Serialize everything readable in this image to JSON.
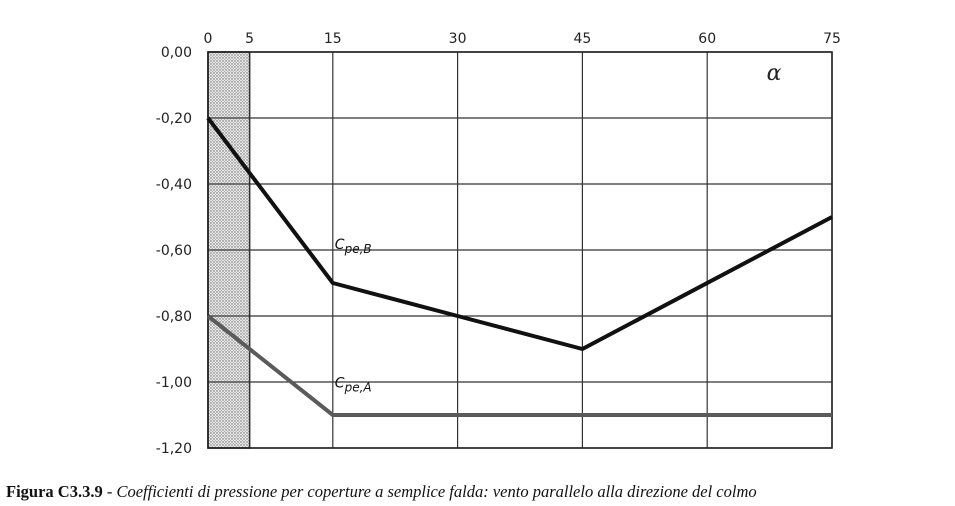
{
  "chart_data": {
    "type": "line",
    "x_axis": {
      "position": "top",
      "ticks": [
        0,
        5,
        15,
        30,
        45,
        60,
        75
      ],
      "xlim": [
        0,
        75
      ],
      "label": "α"
    },
    "y_axis": {
      "ticks": [
        "0,00",
        "-0,20",
        "-0,40",
        "-0,60",
        "-0,80",
        "-1,00",
        "-1,20"
      ],
      "tick_values": [
        0,
        -0.2,
        -0.4,
        -0.6,
        -0.8,
        -1.0,
        -1.2
      ],
      "ylim": [
        -1.2,
        0
      ]
    },
    "grid": true,
    "hatched_band": {
      "x_from": 0,
      "x_to": 5
    },
    "series": [
      {
        "label_main": "C",
        "label_sub": "pe,B",
        "color": "#111111",
        "x": [
          0,
          15,
          30,
          45,
          75
        ],
        "y": [
          -0.2,
          -0.7,
          -0.8,
          -0.9,
          -0.5
        ],
        "label_at": [
          15,
          -0.6
        ]
      },
      {
        "label_main": "C",
        "label_sub": "pe,A",
        "color": "#5a5a5a",
        "x": [
          0,
          15,
          75
        ],
        "y": [
          -0.8,
          -1.1,
          -1.1
        ],
        "label_at": [
          15,
          -1.02
        ]
      }
    ]
  },
  "caption": {
    "label": "Figura C3.3.9",
    "separator": " - ",
    "text": "Coefficienti di pressione per coperture a semplice falda: vento parallelo alla direzione del colmo"
  }
}
